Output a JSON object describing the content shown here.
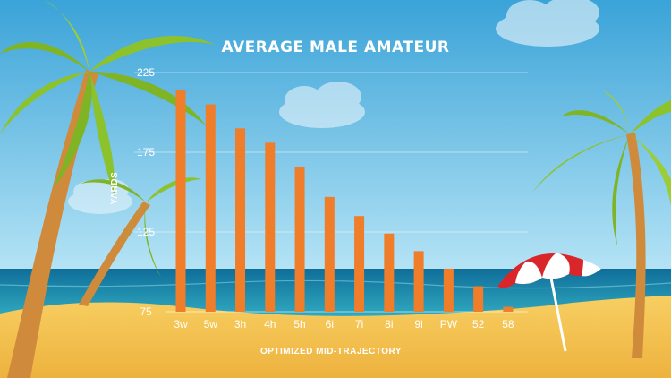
{
  "chart_data": {
    "type": "bar",
    "title": "AVERAGE MALE AMATEUR",
    "xlabel": "OPTIMIZED MID-TRAJECTORY",
    "ylabel": "YARDS",
    "categories": [
      "3w",
      "5w",
      "3h",
      "4h",
      "5h",
      "6i",
      "7i",
      "8i",
      "9i",
      "PW",
      "52",
      "58"
    ],
    "values": [
      214,
      205,
      190,
      181,
      166,
      147,
      135,
      124,
      113,
      102,
      91,
      78
    ],
    "yticks": [
      75,
      125,
      175,
      225
    ],
    "ylim": [
      75,
      225
    ],
    "grid": true,
    "bar_color": "#f07d2a"
  },
  "colors": {
    "sky_top": "#3fa7dc",
    "sky_bottom": "#a9def3",
    "sea": "#1f8fb0",
    "sand": "#f2c14e",
    "palm_leaf": "#8cbf2a",
    "palm_trunk": "#d28a3c",
    "umbrella_red": "#d9262b"
  }
}
